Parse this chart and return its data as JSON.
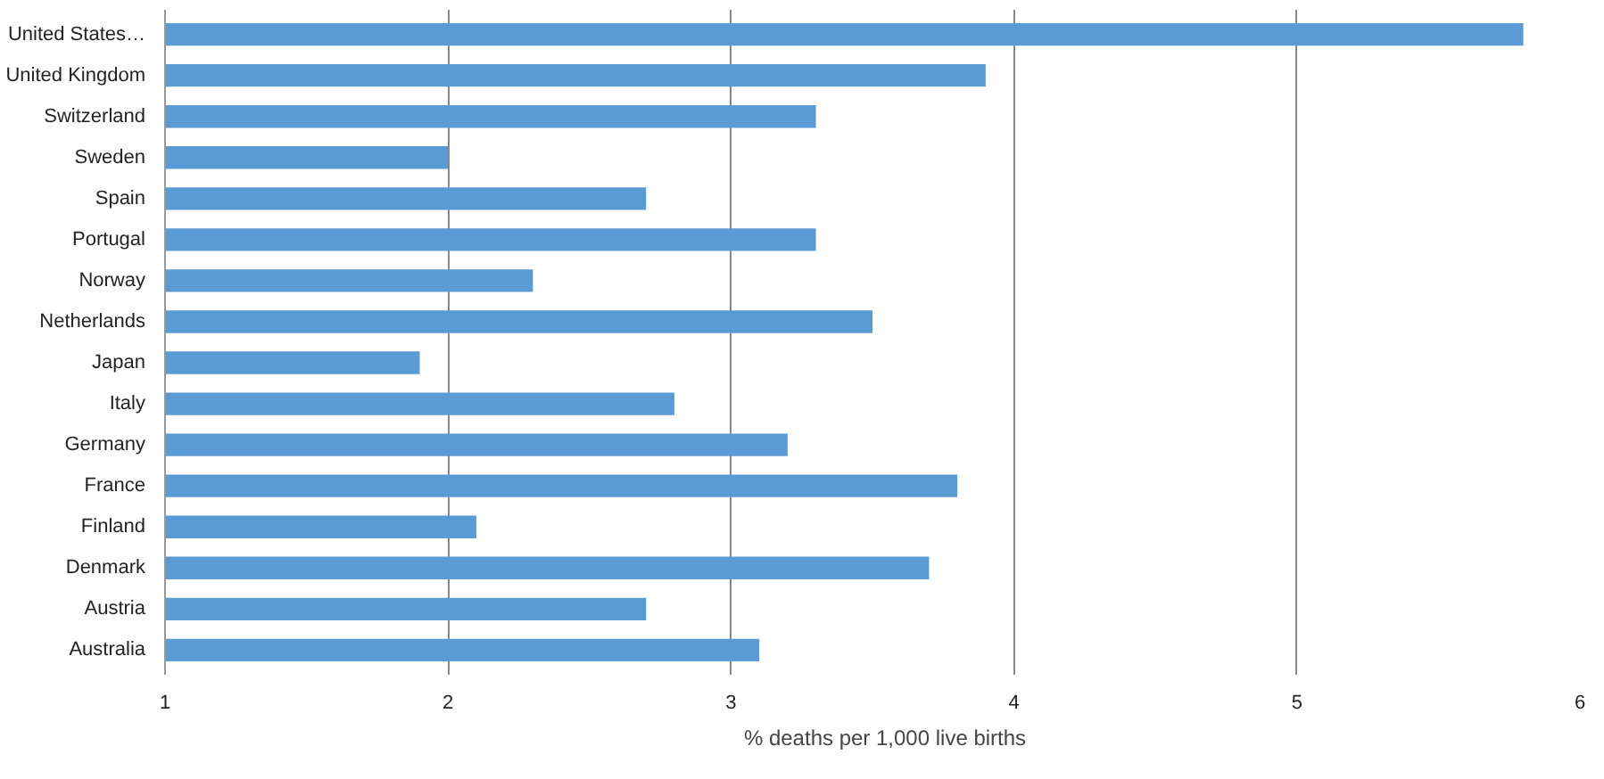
{
  "chart_data": {
    "type": "bar",
    "orientation": "horizontal",
    "categories": [
      "United States…",
      "United Kingdom",
      "Switzerland",
      "Sweden",
      "Spain",
      "Portugal",
      "Norway",
      "Netherlands",
      "Japan",
      "Italy",
      "Germany",
      "France",
      "Finland",
      "Denmark",
      "Austria",
      "Australia"
    ],
    "series": [
      {
        "name": "% deaths per 1,000 live births",
        "color": "#5b9bd5",
        "values": [
          5.8,
          3.9,
          3.3,
          2.0,
          2.7,
          3.3,
          2.3,
          3.5,
          1.9,
          2.8,
          3.2,
          3.8,
          2.1,
          3.7,
          2.7,
          3.1
        ]
      }
    ],
    "xlim": [
      1,
      6
    ],
    "xticks": [
      1,
      2,
      3,
      4,
      5,
      6
    ],
    "grid": "x",
    "legend": "bottom"
  }
}
